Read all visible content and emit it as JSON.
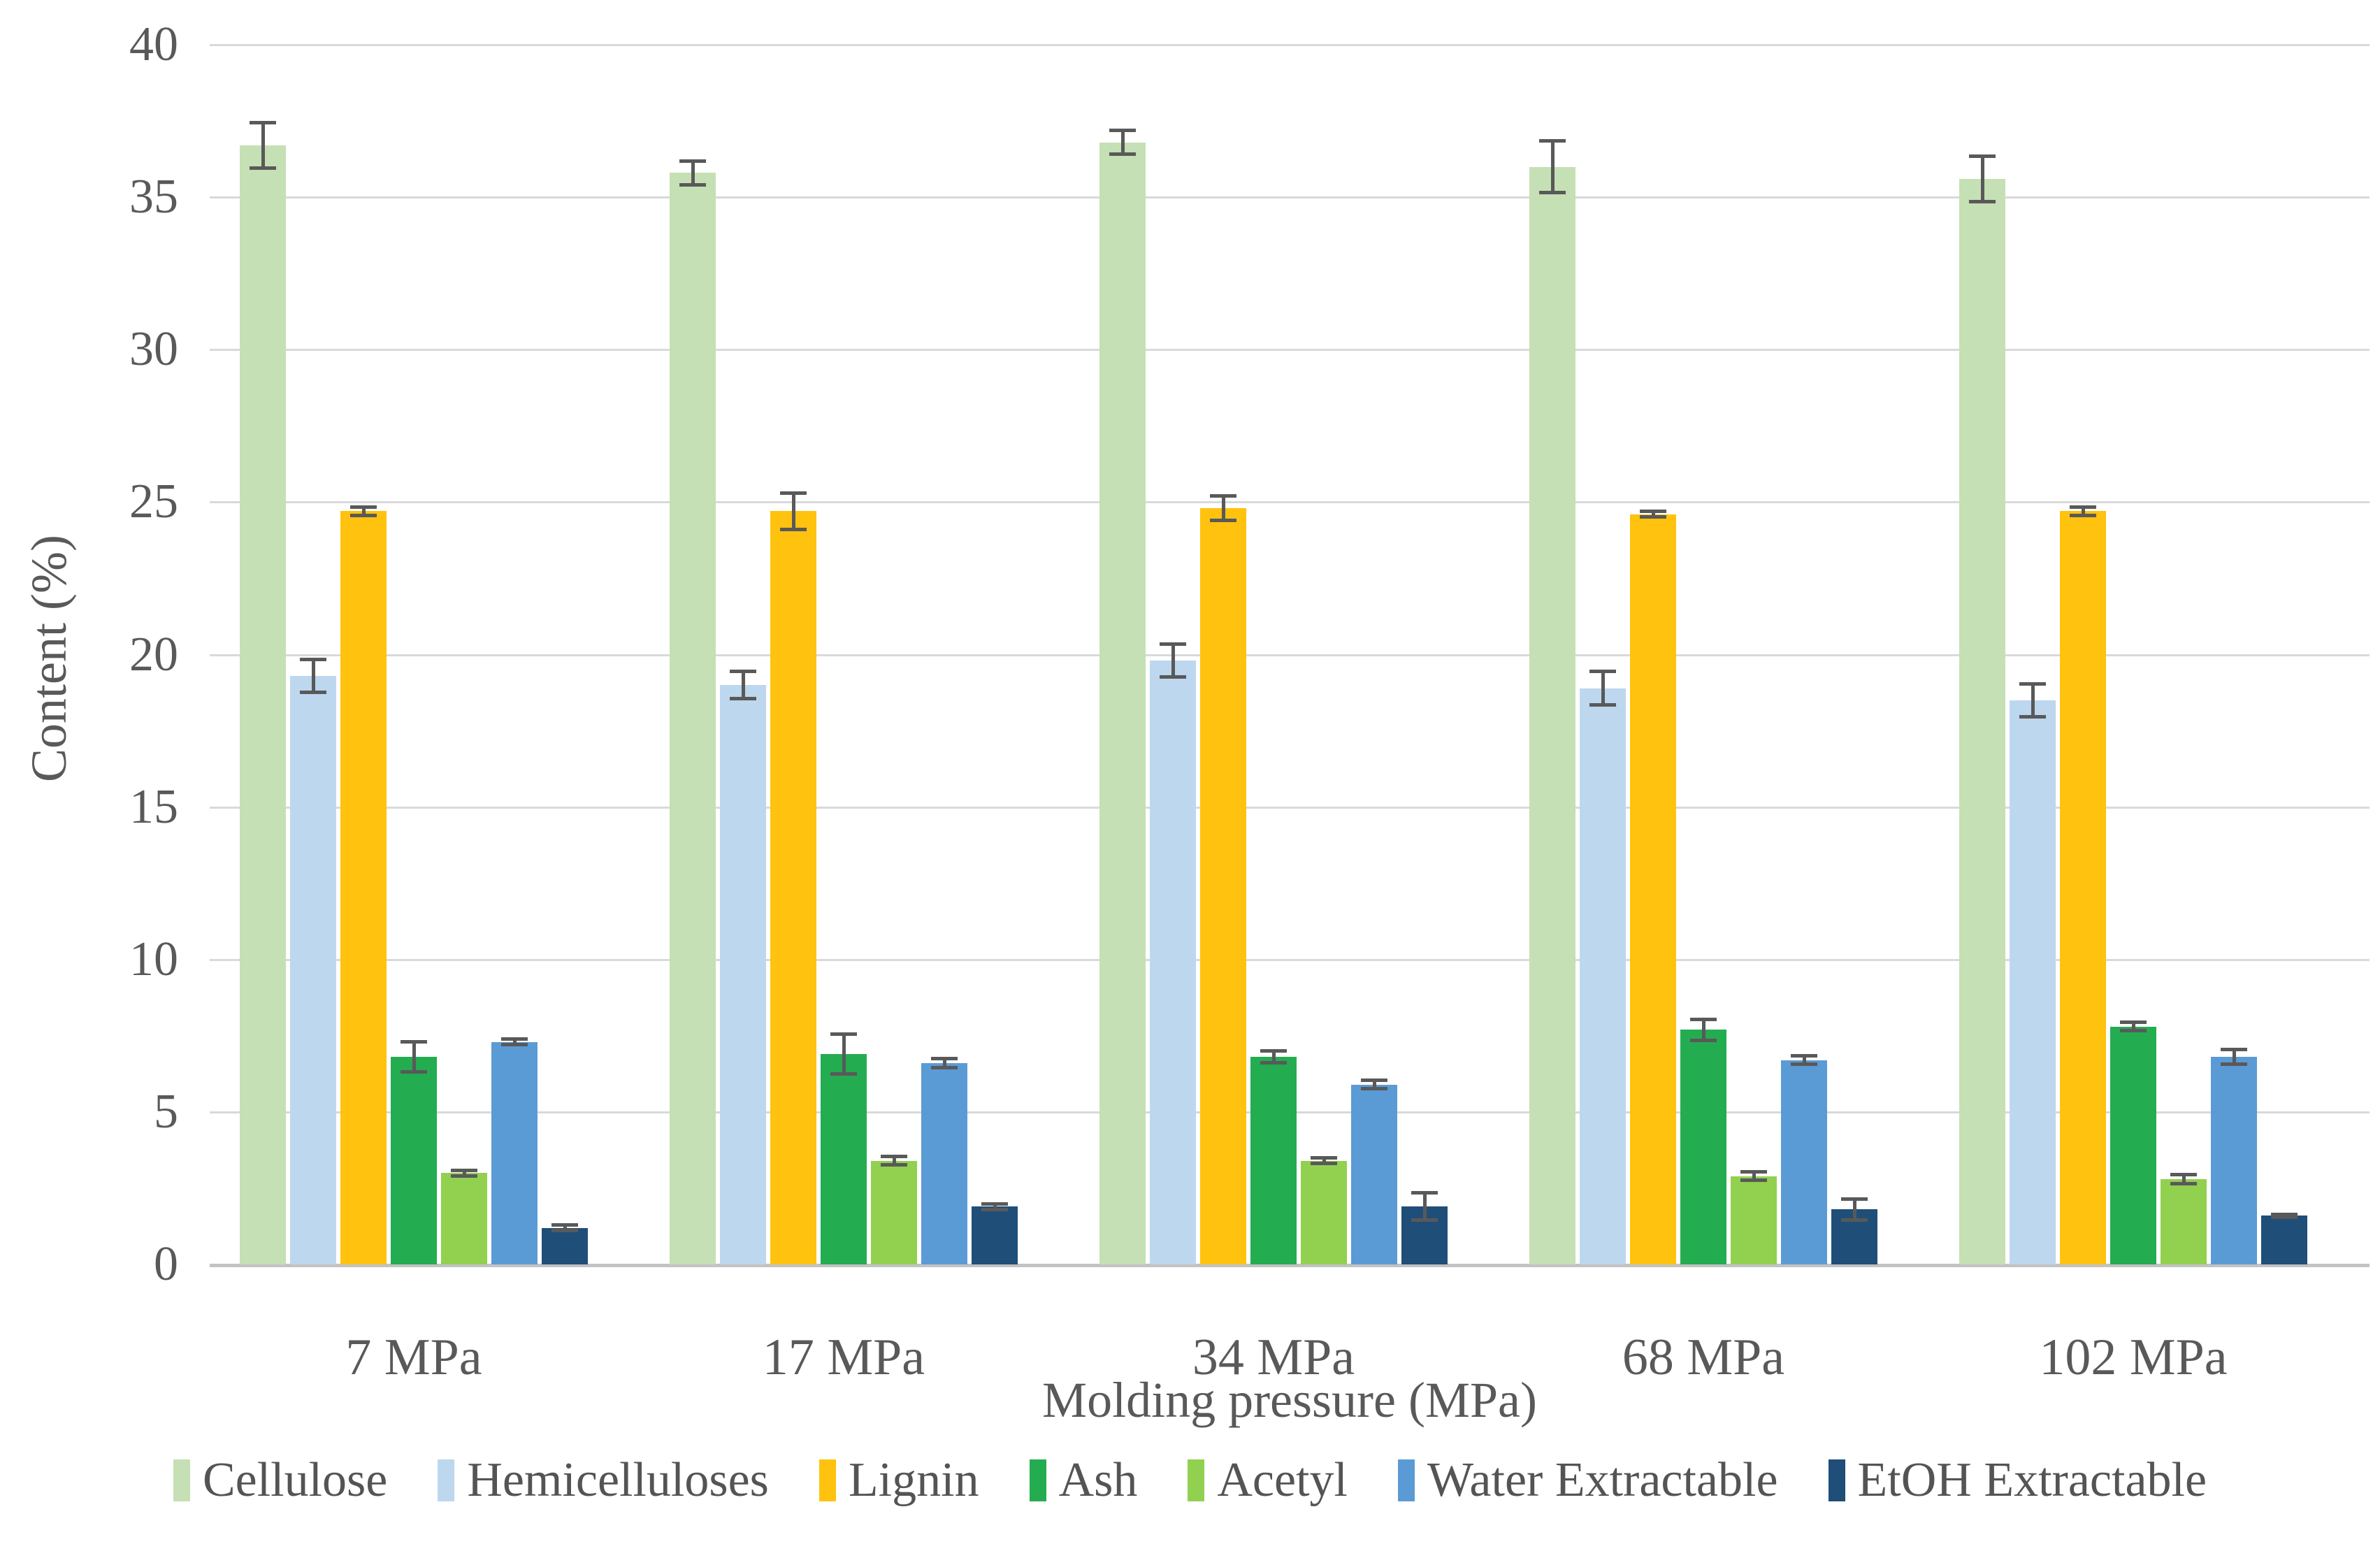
{
  "chart_data": {
    "type": "bar",
    "title": "",
    "xlabel": "Molding pressure (MPa)",
    "ylabel": "Content (%)",
    "ylim": [
      0,
      40
    ],
    "yticks": [
      0,
      5,
      10,
      15,
      20,
      25,
      30,
      35,
      40
    ],
    "grid": true,
    "legend_position": "bottom",
    "error_bars": true,
    "categories": [
      "7 MPa",
      "17 MPa",
      "34 MPa",
      "68 MPa",
      "102 MPa"
    ],
    "series": [
      {
        "name": "Cellulose",
        "color": "#C5E0B4",
        "values": [
          36.7,
          35.8,
          36.8,
          36.0,
          35.6
        ],
        "errors": [
          0.8,
          0.45,
          0.45,
          0.9,
          0.8
        ]
      },
      {
        "name": "Hemicelluloses",
        "color": "#BDD7EE",
        "values": [
          19.3,
          19.0,
          19.8,
          18.9,
          18.5
        ],
        "errors": [
          0.6,
          0.5,
          0.6,
          0.6,
          0.6
        ]
      },
      {
        "name": "Lignin",
        "color": "#FFC20E",
        "values": [
          24.7,
          24.7,
          24.8,
          24.6,
          24.7
        ],
        "errors": [
          0.2,
          0.65,
          0.45,
          0.15,
          0.2
        ]
      },
      {
        "name": "Ash",
        "color": "#24AC51",
        "values": [
          6.8,
          6.9,
          6.8,
          7.7,
          7.8
        ],
        "errors": [
          0.55,
          0.7,
          0.25,
          0.4,
          0.2
        ]
      },
      {
        "name": "Acetyl",
        "color": "#92D050",
        "values": [
          3.0,
          3.4,
          3.4,
          2.9,
          2.8
        ],
        "errors": [
          0.15,
          0.2,
          0.15,
          0.2,
          0.2
        ]
      },
      {
        "name": "Water Extractable",
        "color": "#5B9BD5",
        "values": [
          7.3,
          6.6,
          5.9,
          6.7,
          6.8
        ],
        "errors": [
          0.15,
          0.2,
          0.2,
          0.2,
          0.3
        ]
      },
      {
        "name": "EtOH Extractable",
        "color": "#1F4E79",
        "values": [
          1.2,
          1.9,
          1.9,
          1.8,
          1.6
        ],
        "errors": [
          0.15,
          0.15,
          0.5,
          0.4,
          0.1
        ]
      }
    ],
    "style": {
      "gridline_color": "#d9d9d9",
      "baseline_color": "#c3c3c3",
      "error_bar_color": "#595959",
      "text_color": "#595959"
    }
  }
}
